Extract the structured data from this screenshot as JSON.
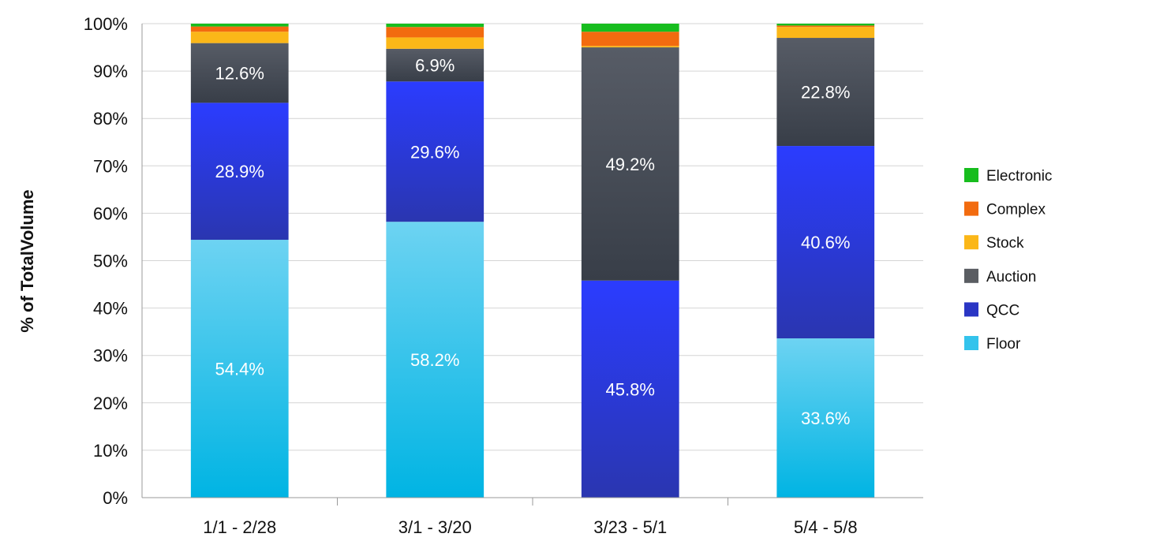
{
  "chart_data": {
    "type": "bar",
    "stacked": true,
    "categories": [
      "1/1 - 2/28",
      "3/1 - 3/20",
      "3/23 - 5/1",
      "5/4 - 5/8"
    ],
    "ylabel": "% of TotalVolume",
    "xlabel": "",
    "ylim": [
      0,
      100
    ],
    "yticks": [
      "0%",
      "10%",
      "20%",
      "30%",
      "40%",
      "50%",
      "60%",
      "70%",
      "80%",
      "90%",
      "100%"
    ],
    "grid": true,
    "legend_position": "right",
    "series": [
      {
        "name": "Floor",
        "color": "#00b4e3",
        "color_light": "#6dd3f2",
        "values": [
          54.4,
          58.2,
          0.0,
          33.6
        ],
        "labels": [
          "54.4%",
          "58.2%",
          "",
          "33.6%"
        ]
      },
      {
        "name": "QCC",
        "color": "#2a36b0",
        "color_light": "#2b3cff",
        "values": [
          28.9,
          29.6,
          45.8,
          40.6
        ],
        "labels": [
          "28.9%",
          "29.6%",
          "45.8%",
          "40.6%"
        ]
      },
      {
        "name": "Auction",
        "color": "#383e48",
        "color_light": "#575c66",
        "values": [
          12.6,
          6.9,
          49.2,
          22.8
        ],
        "labels": [
          "12.6%",
          "6.9%",
          "49.2%",
          "22.8%"
        ]
      },
      {
        "name": "Stock",
        "color": "#fbb718",
        "color_light": "#fbb718",
        "values": [
          2.4,
          2.4,
          0.3,
          2.3
        ],
        "labels": [
          "",
          "",
          "",
          ""
        ]
      },
      {
        "name": "Complex",
        "color": "#f26b0f",
        "color_light": "#f26b0f",
        "values": [
          1.1,
          2.2,
          3.0,
          0.3
        ],
        "labels": [
          "",
          "",
          "",
          ""
        ]
      },
      {
        "name": "Electronic",
        "color": "#17bd1e",
        "color_light": "#17bd1e",
        "values": [
          0.6,
          0.7,
          1.7,
          0.4
        ],
        "labels": [
          "",
          "",
          "",
          ""
        ]
      }
    ],
    "legend_order": [
      "Electronic",
      "Complex",
      "Stock",
      "Auction",
      "QCC",
      "Floor"
    ],
    "legend_colors": {
      "Electronic": "#17bd1e",
      "Complex": "#f26b0f",
      "Stock": "#fbb718",
      "Auction": "#5a5d62",
      "QCC": "#2a36c4",
      "Floor": "#33c3ec"
    }
  }
}
